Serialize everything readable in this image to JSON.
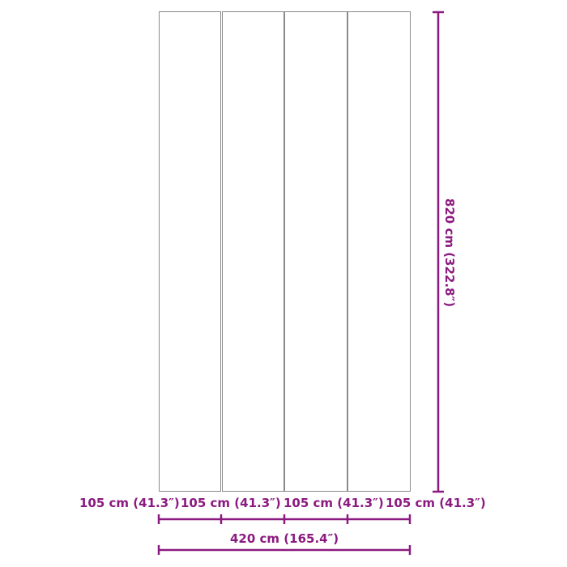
{
  "accent_color": "#8b1a80",
  "panel_count": 4,
  "dimensions": {
    "height": "820 cm (322.8″)",
    "total_width": "420 cm (165.4″)",
    "panel_widths": [
      "105 cm (41.3″)",
      "105 cm (41.3″)",
      "105 cm (41.3″)",
      "105 cm (41.3″)"
    ]
  }
}
